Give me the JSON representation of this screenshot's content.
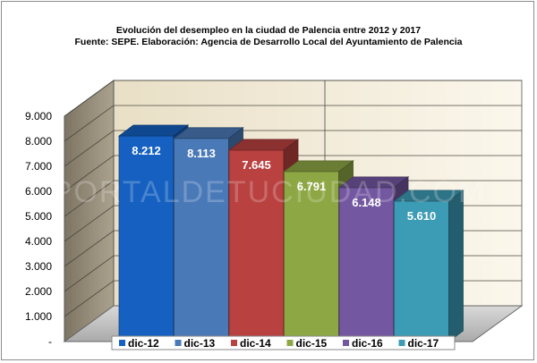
{
  "chart_data": {
    "type": "bar",
    "title": "Evolución del desempleo  en la ciudad de Palencia entre 2012 y 2017",
    "subtitle": "Fuente:  SEPE. Elaboración:  Agencia  de Desarrollo Local del Ayuntamiento  de Palencia",
    "categories": [
      "dic-12",
      "dic-13",
      "dic-14",
      "dic-15",
      "dic-16",
      "dic-17"
    ],
    "values": [
      8212,
      8113,
      7645,
      6791,
      6148,
      5610
    ],
    "value_labels": [
      "8.212",
      "8.113",
      "7.645",
      "6.791",
      "6.148",
      "5.610"
    ],
    "colors": [
      "#1560c0",
      "#4a79b8",
      "#b94140",
      "#8ea745",
      "#7357a0",
      "#3c9bb5"
    ],
    "ylim": [
      0,
      9000
    ],
    "yticks": [
      0,
      1000,
      2000,
      3000,
      4000,
      5000,
      6000,
      7000,
      8000,
      9000
    ],
    "ytick_labels": [
      "-",
      "1.000",
      "2.000",
      "3.000",
      "4.000",
      "5.000",
      "6.000",
      "7.000",
      "8.000",
      "9.000"
    ],
    "grid": true,
    "legend_position": "bottom",
    "three_d": true,
    "watermark": "PORTALDETUCIUDAD.COM"
  }
}
